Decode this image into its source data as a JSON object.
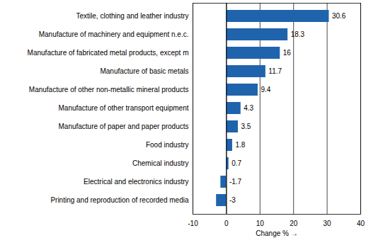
{
  "chart_data": {
    "type": "bar",
    "orientation": "horizontal",
    "categories": [
      "Textile, clothing and leather industry",
      "Manufacture of machinery and equipment n.e.c.",
      "Manufacture of fabricated metal products, except m",
      "Manufacture of basic metals",
      "Manufacture of other non-metallic mineral products",
      "Manufacture of other transport equipment",
      "Manufacture of paper and paper products",
      "Food industry",
      "Chemical industry",
      "Electrical and electronics industry",
      "Printing and reproduction of recorded media"
    ],
    "values": [
      30.6,
      18.3,
      16,
      11.7,
      9.4,
      4.3,
      3.5,
      1.8,
      0.7,
      -1.7,
      -3
    ],
    "color": "#2063ad",
    "x_label": "Change %",
    "xlim": [
      -10,
      40
    ],
    "xticks": [
      -10,
      0,
      10,
      20,
      30,
      40
    ],
    "grid": true,
    "data_labels": true
  }
}
